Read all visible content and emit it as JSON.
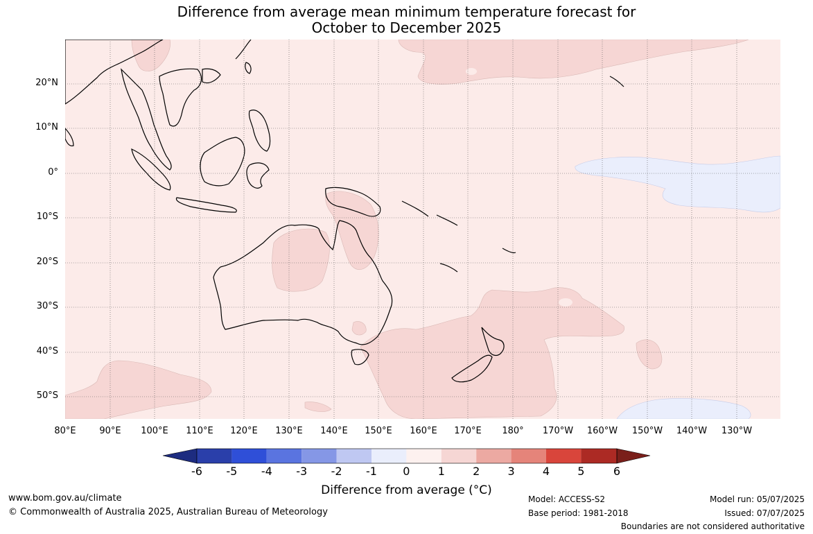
{
  "title": {
    "line1": "Difference from average mean minimum temperature forecast for",
    "line2": "October to December 2025"
  },
  "map": {
    "lat_labels": [
      "20°N",
      "10°N",
      "0°",
      "10°S",
      "20°S",
      "30°S",
      "40°S",
      "50°S"
    ],
    "lon_labels": [
      "80°E",
      "90°E",
      "100°E",
      "110°E",
      "120°E",
      "130°E",
      "140°E",
      "150°E",
      "160°E",
      "170°E",
      "180°",
      "170°W",
      "160°W",
      "150°W",
      "140°W",
      "130°W"
    ],
    "colors": {
      "background_anomaly_0_to_1": "#fcebe9",
      "anomaly_1_to_2": "#f6d6d4",
      "anomaly_minus1_to_0": "#eaeefc",
      "coastline": "#000000",
      "gridline": "#555555"
    }
  },
  "colorbar": {
    "title": "Difference from average (°C)",
    "ticks": [
      "-6",
      "-5",
      "-4",
      "-3",
      "-2",
      "-1",
      "0",
      "1",
      "2",
      "3",
      "4",
      "5",
      "6"
    ],
    "colors": [
      "#1d2c80",
      "#2a3faa",
      "#2f4fd8",
      "#5a74e0",
      "#8597e6",
      "#bfc8f2",
      "#eaeefc",
      "#fdf1ef",
      "#f6d6d4",
      "#eca9a2",
      "#e5847a",
      "#d9453b",
      "#ac2a24",
      "#7a1f1a"
    ]
  },
  "footer": {
    "website": "www.bom.gov.au/climate",
    "copyright": "© Commonwealth of Australia 2025, Australian Bureau of Meteorology",
    "model": "Model: ACCESS-S2",
    "base_period": "Base period: 1981-2018",
    "model_run": "Model run: 05/07/2025",
    "issued": "Issued: 07/07/2025",
    "disclaimer": "Boundaries are not considered authoritative"
  }
}
